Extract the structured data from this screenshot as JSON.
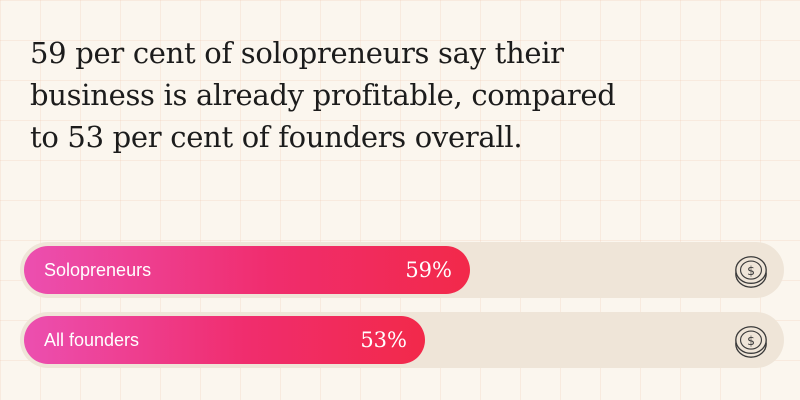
{
  "headline": "59 per cent of solopreneurs say their business is already profitable, compared to 53 per cent of founders overall.",
  "colors": {
    "background": "#fbf6ee",
    "track": "#efe5d8",
    "bar_start": "#ec4fb0",
    "bar_end": "#f2294a",
    "headline_text": "#1c1c1c"
  },
  "icons": {
    "row_icon": "dollar-coin-icon"
  },
  "chart_data": {
    "type": "bar",
    "orientation": "horizontal",
    "title": "59 per cent of solopreneurs say their business is already profitable, compared to 53 per cent of founders overall.",
    "categories": [
      "Solopreneurs",
      "All founders"
    ],
    "values": [
      59,
      53
    ],
    "value_labels": [
      "59%",
      "53%"
    ],
    "xlim": [
      0,
      100
    ],
    "grid": false,
    "legend": "none"
  }
}
